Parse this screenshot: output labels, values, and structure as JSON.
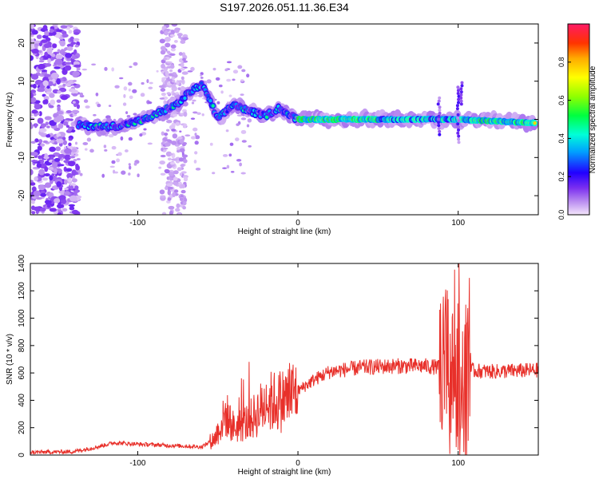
{
  "page_title": "S197.2026.051.11.36.E34",
  "chart_data": [
    {
      "type": "heatmap",
      "name": "spectrogram",
      "xlabel": "Height of straight line (km)",
      "ylabel": "Frequency (Hz)",
      "xlim": [
        -167,
        150
      ],
      "ylim": [
        -25,
        25
      ],
      "xticks": [
        -100,
        0,
        100
      ],
      "yticks": [
        -20,
        -10,
        0,
        10,
        20
      ],
      "colorbar": {
        "label": "Normalized spectral amplitude",
        "range": [
          0,
          1
        ],
        "ticks": [
          0.0,
          0.2,
          0.4,
          0.6,
          0.8
        ]
      },
      "ridge": {
        "description_points": [
          {
            "x": -135,
            "y": -1.5
          },
          {
            "x": -120,
            "y": -2
          },
          {
            "x": -110,
            "y": -1.5
          },
          {
            "x": -95,
            "y": 0
          },
          {
            "x": -85,
            "y": 2
          },
          {
            "x": -75,
            "y": 4
          },
          {
            "x": -68,
            "y": 7
          },
          {
            "x": -60,
            "y": 9
          },
          {
            "x": -55,
            "y": 5
          },
          {
            "x": -50,
            "y": 0
          },
          {
            "x": -45,
            "y": 2
          },
          {
            "x": -40,
            "y": 4
          },
          {
            "x": -30,
            "y": 2
          },
          {
            "x": -20,
            "y": 1
          },
          {
            "x": -12,
            "y": 3
          },
          {
            "x": -5,
            "y": 1
          },
          {
            "x": 0,
            "y": 0
          },
          {
            "x": 50,
            "y": 0
          },
          {
            "x": 100,
            "y": 0
          },
          {
            "x": 150,
            "y": -1
          }
        ]
      }
    },
    {
      "type": "line",
      "name": "snr",
      "xlabel": "Height of straight line (km)",
      "ylabel": "SNR (10 * v/v)",
      "xlim": [
        -167,
        150
      ],
      "ylim": [
        0,
        1400
      ],
      "xticks": [
        -100,
        0,
        100
      ],
      "yticks": [
        0,
        200,
        400,
        600,
        800,
        1000,
        1200,
        1400
      ],
      "color": "#e8302a",
      "envelope": [
        {
          "x": -167,
          "y": 20
        },
        {
          "x": -140,
          "y": 25
        },
        {
          "x": -125,
          "y": 60
        },
        {
          "x": -115,
          "y": 90
        },
        {
          "x": -100,
          "y": 80
        },
        {
          "x": -80,
          "y": 70
        },
        {
          "x": -60,
          "y": 60
        },
        {
          "x": -52,
          "y": 120
        },
        {
          "x": -45,
          "y": 300
        },
        {
          "x": -40,
          "y": 200
        },
        {
          "x": -30,
          "y": 250
        },
        {
          "x": -20,
          "y": 380
        },
        {
          "x": -10,
          "y": 400
        },
        {
          "x": 0,
          "y": 470
        },
        {
          "x": 10,
          "y": 550
        },
        {
          "x": 20,
          "y": 610
        },
        {
          "x": 40,
          "y": 640
        },
        {
          "x": 60,
          "y": 650
        },
        {
          "x": 80,
          "y": 650
        },
        {
          "x": 88,
          "y": 640
        },
        {
          "x": 95,
          "y": 620
        },
        {
          "x": 105,
          "y": 620
        },
        {
          "x": 120,
          "y": 610
        },
        {
          "x": 150,
          "y": 620
        }
      ]
    }
  ]
}
